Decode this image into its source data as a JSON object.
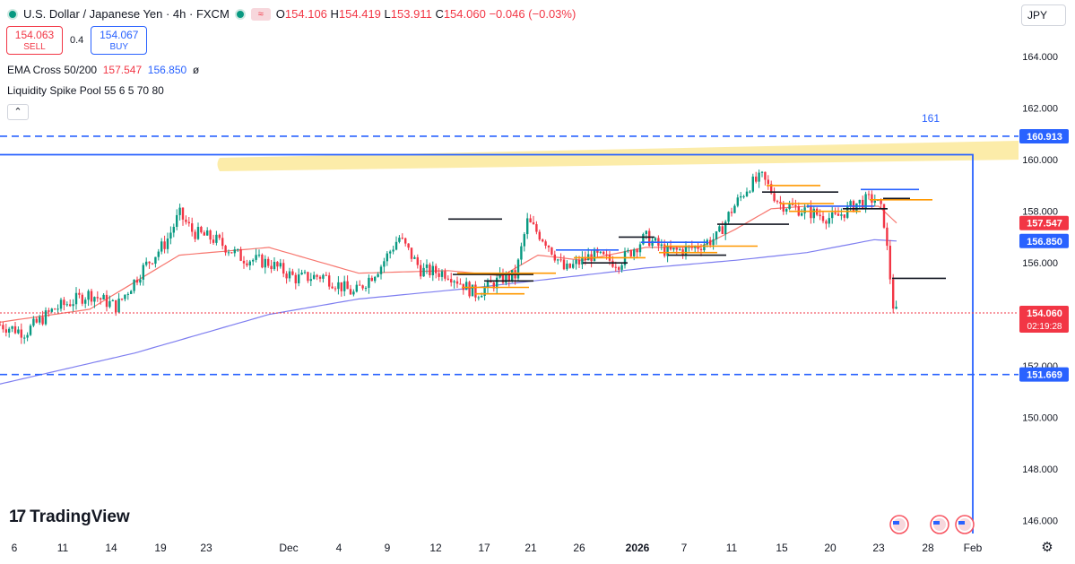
{
  "legend": {
    "symbol": "U.S. Dollar / Japanese Yen · 4h · FXCM",
    "o_label": "O",
    "o_value": "154.106",
    "h_label": "H",
    "h_value": "154.419",
    "l_label": "L",
    "l_value": "153.911",
    "c_label": "C",
    "c_value": "154.060",
    "change": "−0.046 (−0.03%)",
    "symbol_icon": "market-status-icon",
    "wave_icon": "replay-wave-icon"
  },
  "trade": {
    "sell_price": "154.063",
    "sell_label": "SELL",
    "spread": "0.4",
    "buy_price": "154.067",
    "buy_label": "BUY"
  },
  "indicators": {
    "ema_name": "EMA Cross 50/200",
    "ema_fast": "157.547",
    "ema_slow": "156.850",
    "ema_extra": "ø",
    "lsp_name": "Liquidity Spike Pool 55 6 5 70 80"
  },
  "currency": "JPY",
  "brand": "TradingView",
  "colors": {
    "up": "#089981",
    "down": "#f23645",
    "ema_fast": "#f7766e",
    "ema_slow": "#7e7ef0",
    "level": "#2962ff",
    "pool_orange": "#ff9800",
    "pool_black": "#131722",
    "zone": "#fbe99a"
  },
  "chart_data": {
    "type": "candlestick",
    "price_axis": {
      "ticks": [
        "164.000",
        "162.000",
        "160.000",
        "158.000",
        "156.000",
        "154.000",
        "152.000",
        "150.000",
        "148.000",
        "146.000"
      ],
      "range": [
        145.5,
        166.2
      ]
    },
    "time_axis": [
      "6",
      "11",
      "14",
      "19",
      "23",
      "Dec",
      "4",
      "9",
      "12",
      "17",
      "21",
      "26",
      "2026",
      "7",
      "11",
      "15",
      "20",
      "23",
      "28",
      "Feb"
    ],
    "horizontal_levels": [
      {
        "value": 160.913,
        "label": "160.913"
      },
      {
        "value": 151.669,
        "label": "151.669"
      }
    ],
    "annotation": "161",
    "badges": {
      "last_price": "154.060",
      "countdown": "02:19:28",
      "ema_fast": "157.547",
      "ema_slow": "156.850"
    },
    "key_prices": [
      {
        "t": 0,
        "v": 153.6
      },
      {
        "t": 28,
        "v": 153.3
      },
      {
        "t": 60,
        "v": 154.2
      },
      {
        "t": 100,
        "v": 154.8
      },
      {
        "t": 130,
        "v": 154.3
      },
      {
        "t": 160,
        "v": 155.8
      },
      {
        "t": 185,
        "v": 156.8
      },
      {
        "t": 200,
        "v": 157.9
      },
      {
        "t": 215,
        "v": 157.2
      },
      {
        "t": 240,
        "v": 156.9
      },
      {
        "t": 270,
        "v": 156.2
      },
      {
        "t": 300,
        "v": 156.0
      },
      {
        "t": 330,
        "v": 155.4
      },
      {
        "t": 360,
        "v": 155.5
      },
      {
        "t": 395,
        "v": 154.8
      },
      {
        "t": 425,
        "v": 155.9
      },
      {
        "t": 445,
        "v": 157.0
      },
      {
        "t": 470,
        "v": 155.7
      },
      {
        "t": 500,
        "v": 155.6
      },
      {
        "t": 530,
        "v": 154.8
      },
      {
        "t": 560,
        "v": 155.4
      },
      {
        "t": 575,
        "v": 155.5
      },
      {
        "t": 588,
        "v": 157.6
      },
      {
        "t": 610,
        "v": 156.8
      },
      {
        "t": 630,
        "v": 155.7
      },
      {
        "t": 660,
        "v": 156.3
      },
      {
        "t": 690,
        "v": 156.0
      },
      {
        "t": 720,
        "v": 157.0
      },
      {
        "t": 745,
        "v": 156.4
      },
      {
        "t": 775,
        "v": 156.6
      },
      {
        "t": 800,
        "v": 157.0
      },
      {
        "t": 815,
        "v": 158.0
      },
      {
        "t": 835,
        "v": 159.0
      },
      {
        "t": 850,
        "v": 159.3
      },
      {
        "t": 870,
        "v": 158.3
      },
      {
        "t": 900,
        "v": 158.0
      },
      {
        "t": 930,
        "v": 157.7
      },
      {
        "t": 955,
        "v": 158.3
      },
      {
        "t": 975,
        "v": 158.5
      },
      {
        "t": 985,
        "v": 157.9
      },
      {
        "t": 992,
        "v": 155.7
      },
      {
        "t": 997,
        "v": 154.1
      },
      {
        "t": 1000,
        "v": 154.06
      }
    ],
    "ema_fast_line": [
      {
        "t": 0,
        "v": 153.7
      },
      {
        "t": 100,
        "v": 154.2
      },
      {
        "t": 200,
        "v": 156.3
      },
      {
        "t": 300,
        "v": 156.6
      },
      {
        "t": 400,
        "v": 155.6
      },
      {
        "t": 500,
        "v": 155.7
      },
      {
        "t": 560,
        "v": 155.5
      },
      {
        "t": 600,
        "v": 156.3
      },
      {
        "t": 650,
        "v": 156.1
      },
      {
        "t": 720,
        "v": 156.6
      },
      {
        "t": 780,
        "v": 156.6
      },
      {
        "t": 820,
        "v": 157.3
      },
      {
        "t": 860,
        "v": 158.1
      },
      {
        "t": 900,
        "v": 158.2
      },
      {
        "t": 960,
        "v": 158.2
      },
      {
        "t": 980,
        "v": 158.2
      },
      {
        "t": 1000,
        "v": 157.547
      }
    ],
    "ema_slow_line": [
      {
        "t": 0,
        "v": 151.3
      },
      {
        "t": 150,
        "v": 152.5
      },
      {
        "t": 300,
        "v": 154.0
      },
      {
        "t": 400,
        "v": 154.6
      },
      {
        "t": 520,
        "v": 155.0
      },
      {
        "t": 620,
        "v": 155.4
      },
      {
        "t": 720,
        "v": 155.8
      },
      {
        "t": 820,
        "v": 156.1
      },
      {
        "t": 900,
        "v": 156.4
      },
      {
        "t": 975,
        "v": 156.9
      },
      {
        "t": 1000,
        "v": 156.85
      }
    ]
  }
}
